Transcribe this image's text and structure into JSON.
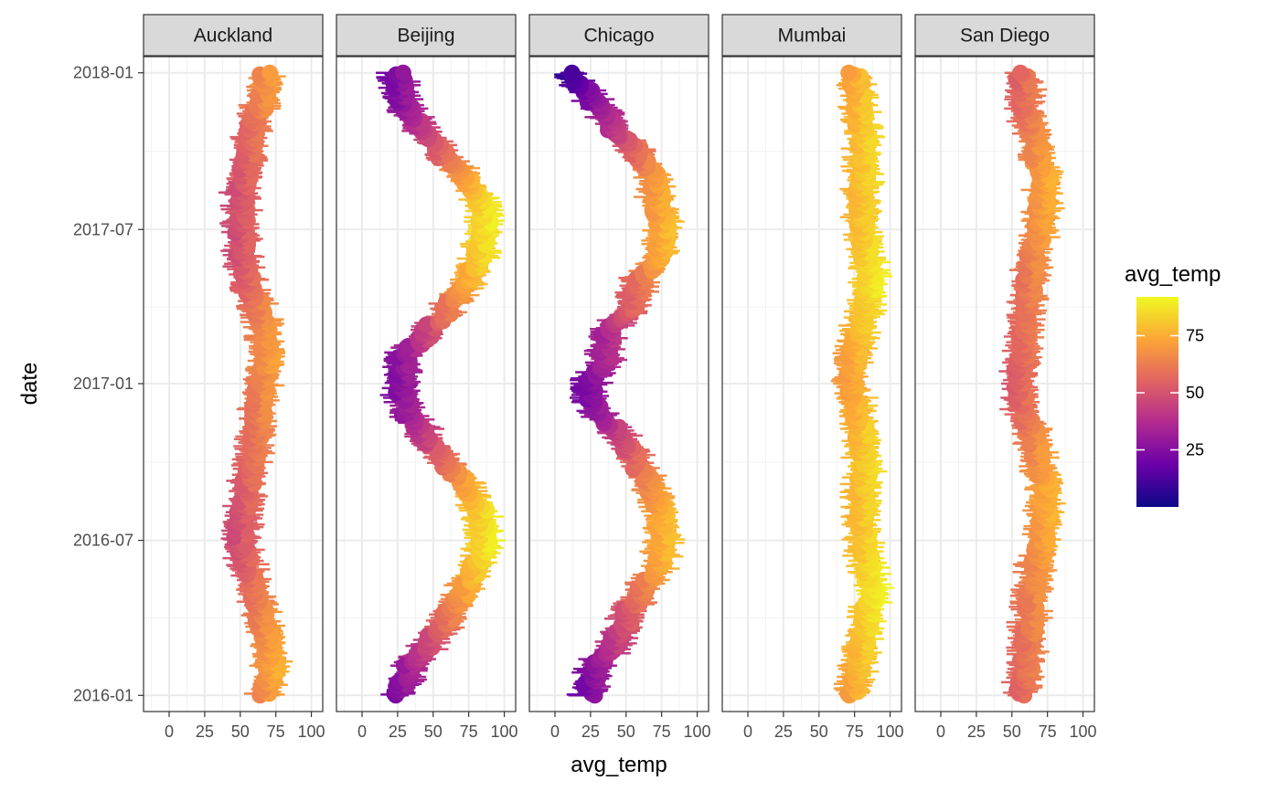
{
  "chart_data": {
    "type": "scatter",
    "layout": "faceted small multiples, one panel per city",
    "xlabel": "avg_temp",
    "ylabel": "date",
    "xlim": [
      -18,
      108
    ],
    "ylim": [
      "2015-12-13",
      "2018-01-20"
    ],
    "x_ticks": [
      "0",
      "25",
      "50",
      "75",
      "100"
    ],
    "x_tick_values": [
      0,
      25,
      50,
      75,
      100
    ],
    "y_ticks": [
      "2016-01",
      "2016-07",
      "2017-01",
      "2017-07",
      "2018-01"
    ],
    "y_tick_values": [
      "2016-01-01",
      "2016-07-01",
      "2017-01-01",
      "2017-07-01",
      "2018-01-01"
    ],
    "grid": true,
    "theme": "bw",
    "color_scale": {
      "variable": "avg_temp",
      "palette": "plasma",
      "colors": [
        "#0d0887",
        "#6a00a8",
        "#b12a90",
        "#e16462",
        "#fca636",
        "#f0f921"
      ],
      "breaks": [
        "25",
        "50",
        "75"
      ],
      "break_values": [
        25,
        50,
        75
      ],
      "range": [
        0,
        92
      ],
      "legend_position": "right"
    },
    "facets": [
      {
        "name": "Auckland",
        "series": [
          {
            "date": "2016-01-01",
            "avg_temp": 67
          },
          {
            "date": "2016-02-01",
            "avg_temp": 72
          },
          {
            "date": "2016-03-01",
            "avg_temp": 70
          },
          {
            "date": "2016-04-01",
            "avg_temp": 65
          },
          {
            "date": "2016-05-01",
            "avg_temp": 60
          },
          {
            "date": "2016-06-01",
            "avg_temp": 55
          },
          {
            "date": "2016-07-01",
            "avg_temp": 50
          },
          {
            "date": "2016-08-01",
            "avg_temp": 52
          },
          {
            "date": "2016-09-01",
            "avg_temp": 55
          },
          {
            "date": "2016-10-01",
            "avg_temp": 58
          },
          {
            "date": "2016-11-01",
            "avg_temp": 61
          },
          {
            "date": "2016-12-01",
            "avg_temp": 63
          },
          {
            "date": "2017-01-01",
            "avg_temp": 65
          },
          {
            "date": "2017-02-01",
            "avg_temp": 69
          },
          {
            "date": "2017-03-01",
            "avg_temp": 67
          },
          {
            "date": "2017-04-01",
            "avg_temp": 62
          },
          {
            "date": "2017-05-01",
            "avg_temp": 55
          },
          {
            "date": "2017-06-01",
            "avg_temp": 51
          },
          {
            "date": "2017-07-01",
            "avg_temp": 51
          },
          {
            "date": "2017-08-01",
            "avg_temp": 50
          },
          {
            "date": "2017-09-01",
            "avg_temp": 53
          },
          {
            "date": "2017-10-01",
            "avg_temp": 56
          },
          {
            "date": "2017-11-01",
            "avg_temp": 59
          },
          {
            "date": "2017-12-01",
            "avg_temp": 66
          },
          {
            "date": "2018-01-01",
            "avg_temp": 68
          }
        ]
      },
      {
        "name": "Beijing",
        "series": [
          {
            "date": "2016-01-01",
            "avg_temp": 25
          },
          {
            "date": "2016-02-01",
            "avg_temp": 33
          },
          {
            "date": "2016-03-01",
            "avg_temp": 46
          },
          {
            "date": "2016-04-01",
            "avg_temp": 60
          },
          {
            "date": "2016-05-01",
            "avg_temp": 71
          },
          {
            "date": "2016-06-01",
            "avg_temp": 80
          },
          {
            "date": "2016-07-01",
            "avg_temp": 86
          },
          {
            "date": "2016-08-01",
            "avg_temp": 84
          },
          {
            "date": "2016-09-01",
            "avg_temp": 74
          },
          {
            "date": "2016-10-01",
            "avg_temp": 59
          },
          {
            "date": "2016-11-01",
            "avg_temp": 43
          },
          {
            "date": "2016-12-01",
            "avg_temp": 31
          },
          {
            "date": "2017-01-01",
            "avg_temp": 27
          },
          {
            "date": "2017-02-01",
            "avg_temp": 30
          },
          {
            "date": "2017-03-01",
            "avg_temp": 45
          },
          {
            "date": "2017-04-01",
            "avg_temp": 62
          },
          {
            "date": "2017-05-01",
            "avg_temp": 74
          },
          {
            "date": "2017-06-01",
            "avg_temp": 83
          },
          {
            "date": "2017-07-01",
            "avg_temp": 87
          },
          {
            "date": "2017-08-01",
            "avg_temp": 84
          },
          {
            "date": "2017-09-01",
            "avg_temp": 72
          },
          {
            "date": "2017-10-01",
            "avg_temp": 55
          },
          {
            "date": "2017-11-01",
            "avg_temp": 40
          },
          {
            "date": "2017-12-01",
            "avg_temp": 28
          },
          {
            "date": "2018-01-01",
            "avg_temp": 25
          }
        ]
      },
      {
        "name": "Chicago",
        "series": [
          {
            "date": "2016-01-01",
            "avg_temp": 24
          },
          {
            "date": "2016-02-01",
            "avg_temp": 28
          },
          {
            "date": "2016-03-01",
            "avg_temp": 42
          },
          {
            "date": "2016-04-01",
            "avg_temp": 50
          },
          {
            "date": "2016-05-01",
            "avg_temp": 60
          },
          {
            "date": "2016-06-01",
            "avg_temp": 73
          },
          {
            "date": "2016-07-01",
            "avg_temp": 76
          },
          {
            "date": "2016-08-01",
            "avg_temp": 75
          },
          {
            "date": "2016-09-01",
            "avg_temp": 68
          },
          {
            "date": "2016-10-01",
            "avg_temp": 57
          },
          {
            "date": "2016-11-01",
            "avg_temp": 46
          },
          {
            "date": "2016-12-01",
            "avg_temp": 28
          },
          {
            "date": "2017-01-01",
            "avg_temp": 25
          },
          {
            "date": "2017-02-01",
            "avg_temp": 36
          },
          {
            "date": "2017-03-01",
            "avg_temp": 37
          },
          {
            "date": "2017-04-01",
            "avg_temp": 53
          },
          {
            "date": "2017-05-01",
            "avg_temp": 60
          },
          {
            "date": "2017-06-01",
            "avg_temp": 73
          },
          {
            "date": "2017-07-01",
            "avg_temp": 76
          },
          {
            "date": "2017-08-01",
            "avg_temp": 72
          },
          {
            "date": "2017-09-01",
            "avg_temp": 70
          },
          {
            "date": "2017-10-01",
            "avg_temp": 57
          },
          {
            "date": "2017-11-01",
            "avg_temp": 40
          },
          {
            "date": "2017-12-01",
            "avg_temp": 27
          },
          {
            "date": "2018-01-01",
            "avg_temp": 10
          }
        ]
      },
      {
        "name": "Mumbai",
        "series": [
          {
            "date": "2016-01-01",
            "avg_temp": 74
          },
          {
            "date": "2016-02-01",
            "avg_temp": 76
          },
          {
            "date": "2016-03-01",
            "avg_temp": 80
          },
          {
            "date": "2016-04-01",
            "avg_temp": 84
          },
          {
            "date": "2016-05-01",
            "avg_temp": 87
          },
          {
            "date": "2016-06-01",
            "avg_temp": 84
          },
          {
            "date": "2016-07-01",
            "avg_temp": 81
          },
          {
            "date": "2016-08-01",
            "avg_temp": 80
          },
          {
            "date": "2016-09-01",
            "avg_temp": 81
          },
          {
            "date": "2016-10-01",
            "avg_temp": 82
          },
          {
            "date": "2016-11-01",
            "avg_temp": 80
          },
          {
            "date": "2016-12-01",
            "avg_temp": 77
          },
          {
            "date": "2017-01-01",
            "avg_temp": 73
          },
          {
            "date": "2017-02-01",
            "avg_temp": 74
          },
          {
            "date": "2017-03-01",
            "avg_temp": 78
          },
          {
            "date": "2017-04-01",
            "avg_temp": 83
          },
          {
            "date": "2017-05-01",
            "avg_temp": 86
          },
          {
            "date": "2017-06-01",
            "avg_temp": 84
          },
          {
            "date": "2017-07-01",
            "avg_temp": 81
          },
          {
            "date": "2017-08-01",
            "avg_temp": 80
          },
          {
            "date": "2017-09-01",
            "avg_temp": 81
          },
          {
            "date": "2017-10-01",
            "avg_temp": 82
          },
          {
            "date": "2017-11-01",
            "avg_temp": 80
          },
          {
            "date": "2017-12-01",
            "avg_temp": 78
          },
          {
            "date": "2018-01-01",
            "avg_temp": 75
          }
        ]
      },
      {
        "name": "San Diego",
        "series": [
          {
            "date": "2016-01-01",
            "avg_temp": 57
          },
          {
            "date": "2016-02-01",
            "avg_temp": 60
          },
          {
            "date": "2016-03-01",
            "avg_temp": 61
          },
          {
            "date": "2016-04-01",
            "avg_temp": 63
          },
          {
            "date": "2016-05-01",
            "avg_temp": 64
          },
          {
            "date": "2016-06-01",
            "avg_temp": 67
          },
          {
            "date": "2016-07-01",
            "avg_temp": 71
          },
          {
            "date": "2016-08-01",
            "avg_temp": 73
          },
          {
            "date": "2016-09-01",
            "avg_temp": 74
          },
          {
            "date": "2016-10-01",
            "avg_temp": 69
          },
          {
            "date": "2016-11-01",
            "avg_temp": 65
          },
          {
            "date": "2016-12-01",
            "avg_temp": 57
          },
          {
            "date": "2017-01-01",
            "avg_temp": 55
          },
          {
            "date": "2017-02-01",
            "avg_temp": 57
          },
          {
            "date": "2017-03-01",
            "avg_temp": 59
          },
          {
            "date": "2017-04-01",
            "avg_temp": 61
          },
          {
            "date": "2017-05-01",
            "avg_temp": 62
          },
          {
            "date": "2017-06-01",
            "avg_temp": 65
          },
          {
            "date": "2017-07-01",
            "avg_temp": 69
          },
          {
            "date": "2017-08-01",
            "avg_temp": 71
          },
          {
            "date": "2017-09-01",
            "avg_temp": 73
          },
          {
            "date": "2017-10-01",
            "avg_temp": 67
          },
          {
            "date": "2017-11-01",
            "avg_temp": 63
          },
          {
            "date": "2017-12-01",
            "avg_temp": 59
          },
          {
            "date": "2018-01-01",
            "avg_temp": 57
          }
        ]
      }
    ]
  }
}
